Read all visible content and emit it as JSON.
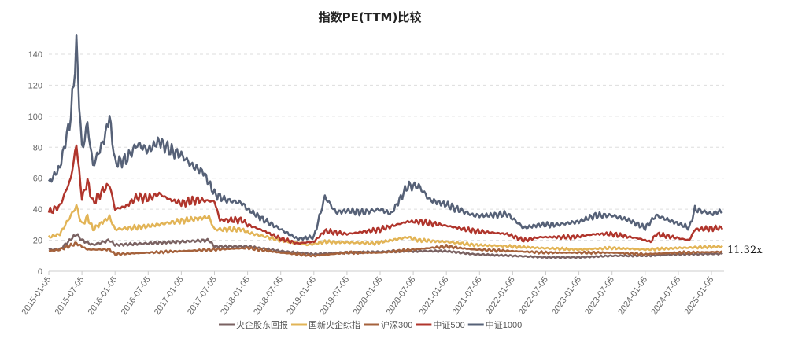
{
  "chart_data": {
    "type": "line",
    "title": "指数PE(TTM)比较",
    "xlabel": "",
    "ylabel": "",
    "ylim": [
      0,
      140
    ],
    "yticks": [
      0,
      20,
      40,
      60,
      80,
      100,
      120,
      140
    ],
    "xticks": [
      "2015-01-05",
      "2015-07-05",
      "2016-01-05",
      "2016-07-05",
      "2017-01-05",
      "2017-07-05",
      "2018-01-05",
      "2018-07-05",
      "2019-01-05",
      "2019-07-05",
      "2020-01-05",
      "2020-07-05",
      "2021-01-05",
      "2021-07-05",
      "2022-01-05",
      "2022-07-05",
      "2023-01-05",
      "2023-07-05",
      "2024-01-05",
      "2024-07-05",
      "2025-01-05"
    ],
    "grid": true,
    "legend_position": "bottom-center",
    "annotation": "11.32x",
    "series": [
      {
        "name": "央企股东回报",
        "color": "#7a6262",
        "points": [
          [
            "2015-01",
            14
          ],
          [
            "2015-03",
            14
          ],
          [
            "2015-06",
            24
          ],
          [
            "2015-07",
            20
          ],
          [
            "2015-09",
            17
          ],
          [
            "2015-12",
            20
          ],
          [
            "2016-01",
            17
          ],
          [
            "2016-07",
            18
          ],
          [
            "2017-06",
            20
          ],
          [
            "2017-07",
            16
          ],
          [
            "2018-01",
            16
          ],
          [
            "2018-07",
            13
          ],
          [
            "2019-01",
            11
          ],
          [
            "2019-06",
            12
          ],
          [
            "2020-06",
            13
          ],
          [
            "2021-01",
            13
          ],
          [
            "2021-06",
            11
          ],
          [
            "2022-01",
            10
          ],
          [
            "2022-07",
            9
          ],
          [
            "2023-01",
            9
          ],
          [
            "2023-07",
            10
          ],
          [
            "2024-01",
            10
          ],
          [
            "2024-07",
            11
          ],
          [
            "2025-03",
            11.3
          ]
        ]
      },
      {
        "name": "国新央企综指",
        "color": "#e2b456",
        "points": [
          [
            "2015-01",
            22
          ],
          [
            "2015-03",
            24
          ],
          [
            "2015-06",
            42
          ],
          [
            "2015-07",
            30
          ],
          [
            "2015-08",
            35
          ],
          [
            "2015-09",
            27
          ],
          [
            "2015-12",
            35
          ],
          [
            "2016-01",
            27
          ],
          [
            "2016-07",
            29
          ],
          [
            "2016-12",
            32
          ],
          [
            "2017-06",
            35
          ],
          [
            "2017-07",
            27
          ],
          [
            "2017-12",
            27
          ],
          [
            "2018-01",
            25
          ],
          [
            "2018-07",
            20
          ],
          [
            "2018-12",
            17
          ],
          [
            "2019-03",
            19
          ],
          [
            "2019-12",
            18
          ],
          [
            "2020-06",
            22
          ],
          [
            "2020-08",
            20
          ],
          [
            "2021-01",
            19
          ],
          [
            "2021-06",
            17
          ],
          [
            "2022-01",
            16
          ],
          [
            "2022-06",
            15
          ],
          [
            "2023-01",
            14
          ],
          [
            "2023-07",
            15
          ],
          [
            "2024-01",
            14
          ],
          [
            "2024-07",
            15
          ],
          [
            "2025-03",
            16
          ]
        ]
      },
      {
        "name": "沪深300",
        "color": "#a5623c",
        "points": [
          [
            "2015-01",
            13
          ],
          [
            "2015-03",
            14
          ],
          [
            "2015-06",
            18
          ],
          [
            "2015-08",
            14
          ],
          [
            "2015-12",
            14
          ],
          [
            "2016-01",
            11
          ],
          [
            "2016-07",
            12
          ],
          [
            "2017-01",
            13
          ],
          [
            "2017-07",
            14
          ],
          [
            "2018-01",
            15
          ],
          [
            "2018-07",
            12
          ],
          [
            "2019-01",
            10
          ],
          [
            "2019-07",
            12
          ],
          [
            "2020-01",
            12
          ],
          [
            "2020-07",
            14
          ],
          [
            "2021-01",
            16
          ],
          [
            "2021-06",
            14
          ],
          [
            "2022-01",
            13
          ],
          [
            "2022-07",
            12
          ],
          [
            "2023-01",
            12
          ],
          [
            "2023-07",
            12
          ],
          [
            "2024-01",
            11
          ],
          [
            "2024-07",
            12
          ],
          [
            "2025-03",
            12.5
          ]
        ]
      },
      {
        "name": "中证500",
        "color": "#b0352c",
        "points": [
          [
            "2015-01",
            38
          ],
          [
            "2015-03",
            42
          ],
          [
            "2015-05",
            60
          ],
          [
            "2015-06",
            82
          ],
          [
            "2015-07",
            47
          ],
          [
            "2015-08",
            58
          ],
          [
            "2015-09",
            44
          ],
          [
            "2015-11",
            53
          ],
          [
            "2015-12",
            56
          ],
          [
            "2016-01",
            40
          ],
          [
            "2016-03",
            42
          ],
          [
            "2016-05",
            48
          ],
          [
            "2016-07",
            47
          ],
          [
            "2016-09",
            50
          ],
          [
            "2016-11",
            46
          ],
          [
            "2017-01",
            44
          ],
          [
            "2017-04",
            46
          ],
          [
            "2017-07",
            45
          ],
          [
            "2017-08",
            33
          ],
          [
            "2017-12",
            33
          ],
          [
            "2018-01",
            30
          ],
          [
            "2018-04",
            26
          ],
          [
            "2018-07",
            21
          ],
          [
            "2018-10",
            18
          ],
          [
            "2019-01",
            19
          ],
          [
            "2019-03",
            26
          ],
          [
            "2019-07",
            24
          ],
          [
            "2020-01",
            27
          ],
          [
            "2020-06",
            32
          ],
          [
            "2020-08",
            32
          ],
          [
            "2020-12",
            30
          ],
          [
            "2021-06",
            26
          ],
          [
            "2021-12",
            24
          ],
          [
            "2022-03",
            20
          ],
          [
            "2022-06",
            22
          ],
          [
            "2022-12",
            22
          ],
          [
            "2023-04",
            24
          ],
          [
            "2023-07",
            24
          ],
          [
            "2023-12",
            21
          ],
          [
            "2024-02",
            19
          ],
          [
            "2024-03",
            24
          ],
          [
            "2024-09",
            20
          ],
          [
            "2024-10",
            27
          ],
          [
            "2025-03",
            28
          ]
        ]
      },
      {
        "name": "中证1000",
        "color": "#566177",
        "points": [
          [
            "2015-01",
            57
          ],
          [
            "2015-03",
            67
          ],
          [
            "2015-05",
            100
          ],
          [
            "2015-06",
            145
          ],
          [
            "2015-07",
            78
          ],
          [
            "2015-08",
            95
          ],
          [
            "2015-09",
            68
          ],
          [
            "2015-11",
            85
          ],
          [
            "2015-12",
            100
          ],
          [
            "2016-01",
            70
          ],
          [
            "2016-03",
            72
          ],
          [
            "2016-05",
            82
          ],
          [
            "2016-07",
            78
          ],
          [
            "2016-09",
            84
          ],
          [
            "2016-11",
            78
          ],
          [
            "2017-01",
            75
          ],
          [
            "2017-03",
            68
          ],
          [
            "2017-05",
            64
          ],
          [
            "2017-07",
            50
          ],
          [
            "2017-09",
            46
          ],
          [
            "2017-12",
            44
          ],
          [
            "2018-01",
            40
          ],
          [
            "2018-04",
            33
          ],
          [
            "2018-07",
            27
          ],
          [
            "2018-10",
            21
          ],
          [
            "2019-01",
            22
          ],
          [
            "2019-03",
            48
          ],
          [
            "2019-05",
            38
          ],
          [
            "2019-07",
            39
          ],
          [
            "2019-10",
            38
          ],
          [
            "2020-01",
            40
          ],
          [
            "2020-03",
            37
          ],
          [
            "2020-06",
            55
          ],
          [
            "2020-08",
            55
          ],
          [
            "2020-10",
            46
          ],
          [
            "2021-01",
            43
          ],
          [
            "2021-03",
            40
          ],
          [
            "2021-06",
            36
          ],
          [
            "2021-09",
            36
          ],
          [
            "2021-12",
            37
          ],
          [
            "2022-03",
            28
          ],
          [
            "2022-06",
            30
          ],
          [
            "2022-09",
            30
          ],
          [
            "2023-01",
            32
          ],
          [
            "2023-04",
            36
          ],
          [
            "2023-07",
            36
          ],
          [
            "2023-10",
            33
          ],
          [
            "2024-01",
            28
          ],
          [
            "2024-03",
            36
          ],
          [
            "2024-06",
            32
          ],
          [
            "2024-09",
            28
          ],
          [
            "2024-10",
            40
          ],
          [
            "2025-01",
            37
          ],
          [
            "2025-03",
            39
          ]
        ]
      }
    ]
  }
}
